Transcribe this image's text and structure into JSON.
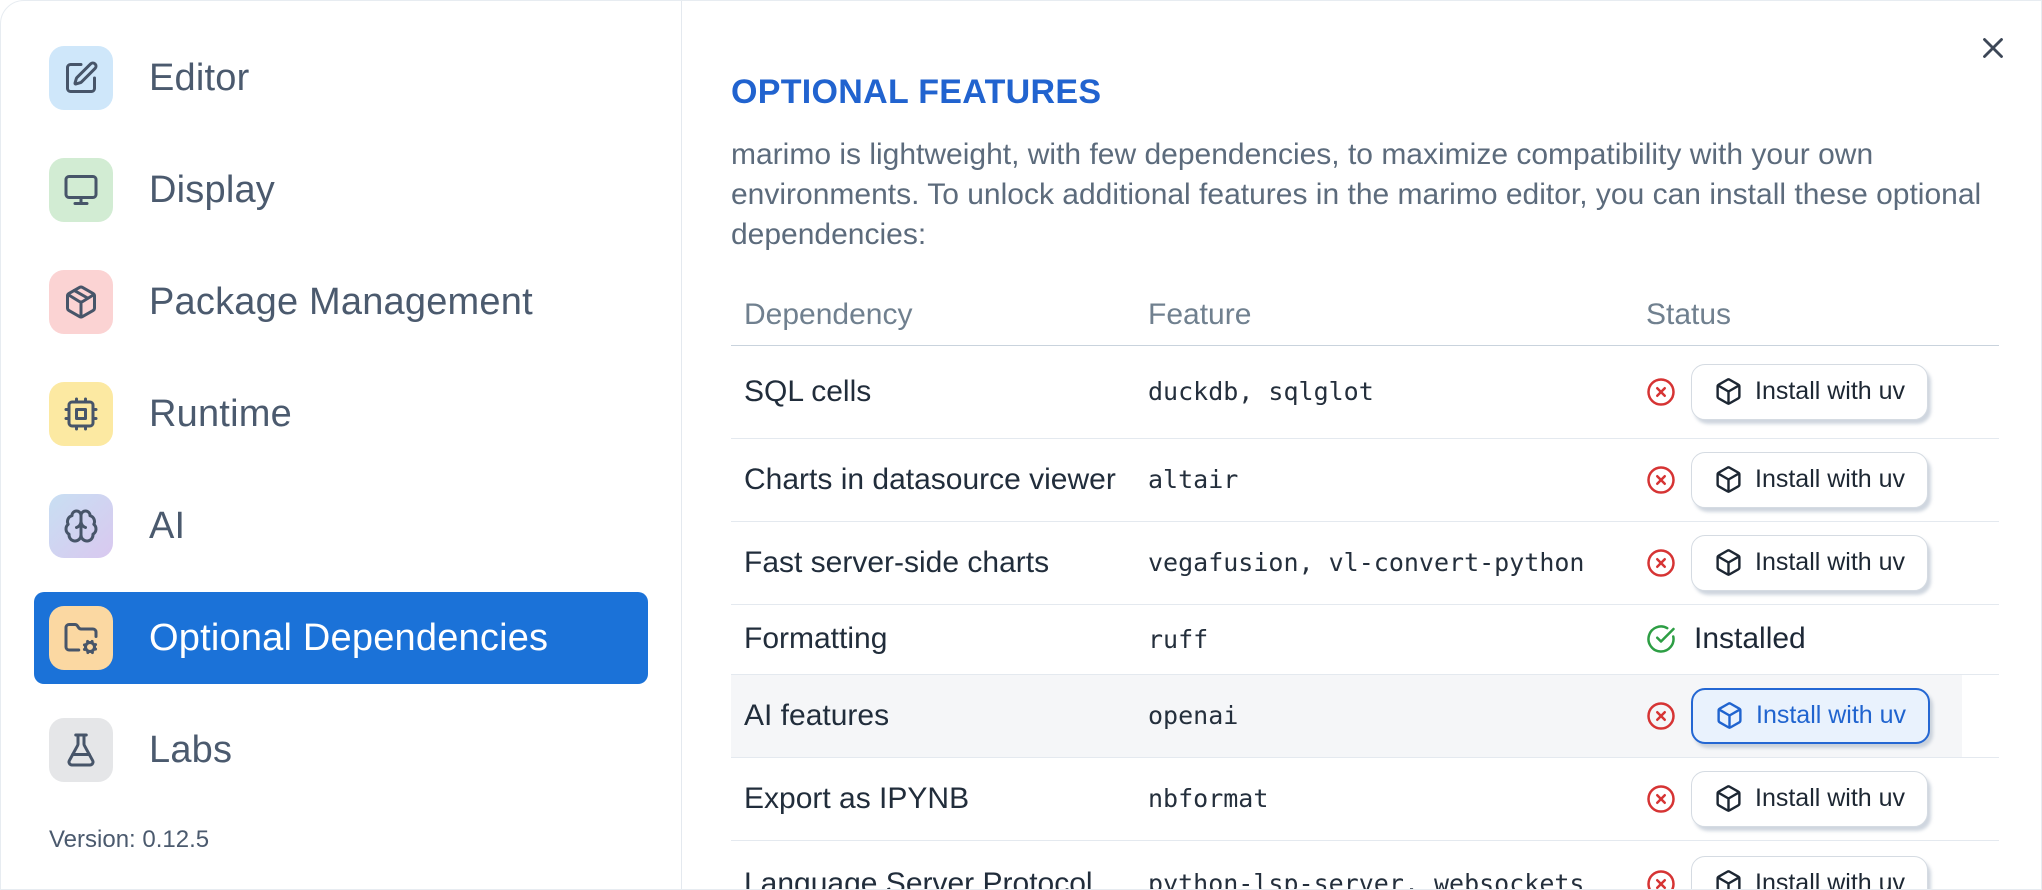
{
  "app": {
    "version_label": "Version: 0.12.5"
  },
  "colors": {
    "accent_blue": "#1b72d8",
    "title_blue": "#2163cf",
    "focus_ring_blue": "#2467d3",
    "error_red": "#d63434",
    "success_green": "#2d9e44"
  },
  "sidebar": {
    "items": [
      {
        "label": "Editor",
        "icon": "square-pen",
        "tile_bg": "#cfe7fa",
        "selected": false
      },
      {
        "label": "Display",
        "icon": "monitor",
        "tile_bg": "#d2ecd3",
        "selected": false
      },
      {
        "label": "Package Management",
        "icon": "package",
        "tile_bg": "#fbd3d3",
        "selected": false
      },
      {
        "label": "Runtime",
        "icon": "cpu",
        "tile_bg": "#fce9a2",
        "selected": false
      },
      {
        "label": "AI",
        "icon": "brain",
        "tile_bg": "#c8dff3",
        "tile_bg2": "#d9c8ef",
        "selected": false
      },
      {
        "label": "Optional Dependencies",
        "icon": "folder-cog",
        "tile_bg": "#fbd8a2",
        "selected": true
      },
      {
        "label": "Labs",
        "icon": "flask-conical",
        "tile_bg": "#e5e6e8",
        "selected": false
      }
    ]
  },
  "dialog": {
    "title": "OPTIONAL FEATURES",
    "description": "marimo is lightweight, with few dependencies, to maximize compatibility with your own environments. To unlock additional features in the marimo editor, you can install these optional dependencies:",
    "close_icon": "x-icon",
    "table": {
      "columns": [
        "Dependency",
        "Feature",
        "Status"
      ],
      "install_button_label": "Install with uv",
      "installed_label": "Installed",
      "rows": [
        {
          "dependency": "SQL cells",
          "feature": "duckdb, sqlglot",
          "installed": false,
          "focused": false
        },
        {
          "dependency": "Charts in datasource viewer",
          "feature": "altair",
          "installed": false,
          "focused": false
        },
        {
          "dependency": "Fast server-side charts",
          "feature": "vegafusion, vl-convert-python",
          "installed": false,
          "focused": false
        },
        {
          "dependency": "Formatting",
          "feature": "ruff",
          "installed": true,
          "focused": false
        },
        {
          "dependency": "AI features",
          "feature": "openai",
          "installed": false,
          "focused": true
        },
        {
          "dependency": "Export as IPYNB",
          "feature": "nbformat",
          "installed": false,
          "focused": false
        },
        {
          "dependency": "Language Server Protocol",
          "feature": "python-lsp-server, websockets",
          "installed": false,
          "focused": false
        }
      ]
    }
  }
}
